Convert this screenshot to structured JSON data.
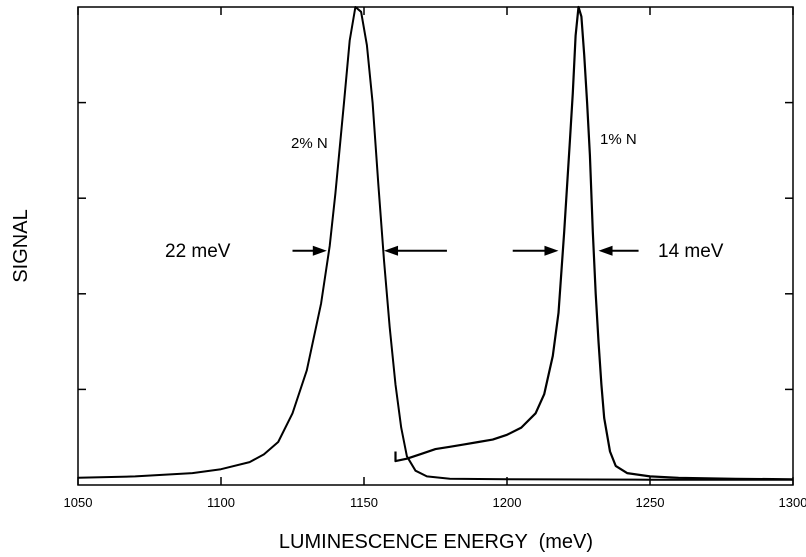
{
  "chart_data": {
    "type": "line",
    "xlabel": "LUMINESCENCE ENERGY  (meV)",
    "ylabel": "SIGNAL",
    "xlim": [
      1050,
      1300
    ],
    "ylim": [
      0,
      1
    ],
    "x_ticks": [
      1050,
      1100,
      1150,
      1200,
      1250,
      1300
    ],
    "x_tick_labels": [
      "1050",
      "1100",
      "1150",
      "1200",
      "1250",
      "1300"
    ],
    "y_ticks": [
      0.2,
      0.4,
      0.6,
      0.8
    ],
    "y_tick_labels_shown": false,
    "grid": false,
    "series": [
      {
        "name": "2% N",
        "points": [
          [
            1050,
            0.015
          ],
          [
            1070,
            0.018
          ],
          [
            1090,
            0.025
          ],
          [
            1100,
            0.033
          ],
          [
            1110,
            0.048
          ],
          [
            1115,
            0.064
          ],
          [
            1120,
            0.09
          ],
          [
            1125,
            0.15
          ],
          [
            1130,
            0.24
          ],
          [
            1135,
            0.38
          ],
          [
            1138,
            0.5
          ],
          [
            1140,
            0.61
          ],
          [
            1143,
            0.8
          ],
          [
            1145,
            0.93
          ],
          [
            1147,
            1.0
          ],
          [
            1149,
            0.99
          ],
          [
            1151,
            0.92
          ],
          [
            1153,
            0.8
          ],
          [
            1155,
            0.63
          ],
          [
            1157,
            0.47
          ],
          [
            1159,
            0.33
          ],
          [
            1161,
            0.21
          ],
          [
            1163,
            0.12
          ],
          [
            1165,
            0.06
          ],
          [
            1168,
            0.03
          ],
          [
            1172,
            0.018
          ],
          [
            1180,
            0.013
          ],
          [
            1200,
            0.012
          ],
          [
            1250,
            0.011
          ],
          [
            1300,
            0.011
          ]
        ]
      },
      {
        "name": "1% N",
        "points": [
          [
            1161,
            0.07
          ],
          [
            1161,
            0.05
          ],
          [
            1165,
            0.055
          ],
          [
            1170,
            0.065
          ],
          [
            1175,
            0.075
          ],
          [
            1180,
            0.08
          ],
          [
            1185,
            0.085
          ],
          [
            1190,
            0.09
          ],
          [
            1195,
            0.095
          ],
          [
            1200,
            0.105
          ],
          [
            1205,
            0.12
          ],
          [
            1210,
            0.15
          ],
          [
            1213,
            0.19
          ],
          [
            1216,
            0.27
          ],
          [
            1218,
            0.36
          ],
          [
            1220,
            0.53
          ],
          [
            1222,
            0.72
          ],
          [
            1223,
            0.82
          ],
          [
            1224,
            0.94
          ],
          [
            1225,
            1.0
          ],
          [
            1226,
            0.98
          ],
          [
            1227,
            0.9
          ],
          [
            1228,
            0.8
          ],
          [
            1229,
            0.69
          ],
          [
            1230,
            0.53
          ],
          [
            1231,
            0.4
          ],
          [
            1232,
            0.3
          ],
          [
            1233,
            0.21
          ],
          [
            1234,
            0.14
          ],
          [
            1236,
            0.07
          ],
          [
            1238,
            0.04
          ],
          [
            1242,
            0.025
          ],
          [
            1250,
            0.018
          ],
          [
            1260,
            0.015
          ],
          [
            1280,
            0.013
          ],
          [
            1300,
            0.012
          ]
        ]
      }
    ],
    "annotations": {
      "label_2n": "2% N",
      "label_1n": "1% N",
      "fwhm_2n": "22 meV",
      "fwhm_1n": "14 meV",
      "arrows": [
        {
          "x_from": 1125,
          "x_to": 1137,
          "y": 0.49
        },
        {
          "x_from": 1179,
          "x_to": 1157,
          "y": 0.49
        },
        {
          "x_from": 1202,
          "x_to": 1218,
          "y": 0.49
        },
        {
          "x_from": 1246,
          "x_to": 1232,
          "y": 0.49
        }
      ]
    }
  }
}
